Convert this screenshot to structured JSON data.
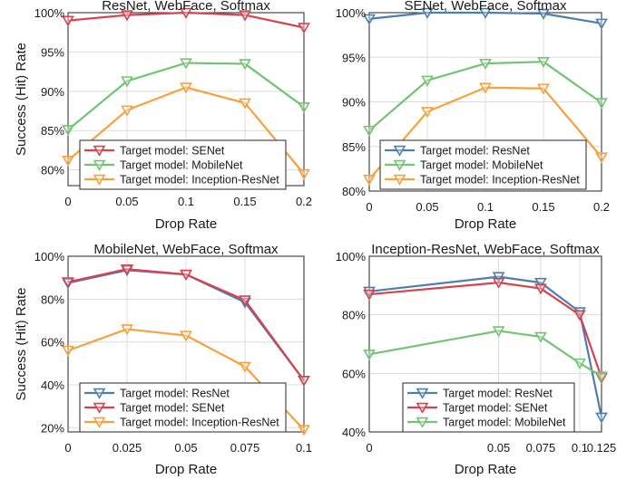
{
  "chart_data": [
    {
      "type": "line",
      "title": "ResNet, WebFace, Softmax",
      "xlabel": "Drop Rate",
      "ylabel": "Success (Hit) Rate",
      "x": [
        0,
        0.05,
        0.1,
        0.15,
        0.2
      ],
      "x_ticks": [
        "0",
        "0.05",
        "0.1",
        "0.15",
        "0.2"
      ],
      "xlim": [
        0,
        0.2
      ],
      "ylim": [
        78,
        100
      ],
      "y_ticks": [
        "80%",
        "85%",
        "90%",
        "95%",
        "100%"
      ],
      "y_tick_values": [
        80,
        85,
        90,
        95,
        100
      ],
      "grid": true,
      "legend_position": "bottom-right",
      "series": [
        {
          "name": "Target model: SENet",
          "color": "#d6434e",
          "values": [
            99.0,
            99.7,
            100.0,
            99.7,
            98.1
          ]
        },
        {
          "name": "Target model: MobileNet",
          "color": "#72c472",
          "values": [
            85.1,
            91.3,
            93.6,
            93.5,
            88.0
          ]
        },
        {
          "name": "Target model: Inception-ResNet",
          "color": "#f6a13b",
          "values": [
            81.2,
            87.6,
            90.5,
            88.5,
            79.5
          ]
        }
      ]
    },
    {
      "type": "line",
      "title": "SENet, WebFace, Softmax",
      "xlabel": "Drop Rate",
      "ylabel": "",
      "x": [
        0,
        0.05,
        0.1,
        0.15,
        0.2
      ],
      "x_ticks": [
        "0",
        "0.05",
        "0.1",
        "0.15",
        "0.2"
      ],
      "xlim": [
        0,
        0.2
      ],
      "ylim": [
        80,
        100
      ],
      "y_ticks": [
        "80%",
        "85%",
        "90%",
        "95%",
        "100%"
      ],
      "y_tick_values": [
        80,
        85,
        90,
        95,
        100
      ],
      "grid": true,
      "legend_position": "bottom-right",
      "series": [
        {
          "name": "Target model: ResNet",
          "color": "#4a7fb0",
          "values": [
            99.3,
            100.0,
            100.0,
            99.9,
            98.8
          ]
        },
        {
          "name": "Target model: MobileNet",
          "color": "#72c472",
          "values": [
            86.8,
            92.4,
            94.3,
            94.5,
            89.9
          ]
        },
        {
          "name": "Target model: Inception-ResNet",
          "color": "#f6a13b",
          "values": [
            81.3,
            88.9,
            91.6,
            91.5,
            83.8
          ]
        }
      ]
    },
    {
      "type": "line",
      "title": "MobileNet, WebFace, Softmax",
      "xlabel": "Drop Rate",
      "ylabel": "Success (Hit) Rate",
      "x": [
        0,
        0.025,
        0.05,
        0.075,
        0.1
      ],
      "x_ticks": [
        "0",
        "0.025",
        "0.05",
        "0.075",
        "0.1"
      ],
      "xlim": [
        0,
        0.1
      ],
      "ylim": [
        18,
        100
      ],
      "y_ticks": [
        "20%",
        "40%",
        "60%",
        "80%",
        "100%"
      ],
      "y_tick_values": [
        20,
        40,
        60,
        80,
        100
      ],
      "grid": true,
      "legend_position": "bottom-left",
      "series": [
        {
          "name": "Target model: ResNet",
          "color": "#4a7fb0",
          "values": [
            87.5,
            93.5,
            91.5,
            78.5,
            42.0
          ]
        },
        {
          "name": "Target model: SENet",
          "color": "#d6434e",
          "values": [
            88.0,
            94.0,
            91.5,
            79.5,
            42.0
          ]
        },
        {
          "name": "Target model: Inception-ResNet",
          "color": "#f6a13b",
          "values": [
            56.0,
            66.0,
            63.0,
            48.5,
            19.0
          ]
        }
      ]
    },
    {
      "type": "line",
      "title": "Inception-ResNet, WebFace, Softmax",
      "xlabel": "Drop Rate",
      "ylabel": "",
      "x": [
        0,
        0.05,
        0.075,
        0.1,
        0.125
      ],
      "x_ticks": [
        "0",
        "0.05",
        "0.075",
        "0.1",
        "0.125"
      ],
      "xlim": [
        0,
        0.125
      ],
      "ylim": [
        40,
        100
      ],
      "y_ticks": [
        "40%",
        "60%",
        "80%",
        "100%"
      ],
      "y_tick_values": [
        40,
        60,
        80,
        100
      ],
      "grid": true,
      "legend_position": "bottom-center",
      "series": [
        {
          "name": "Target model: ResNet",
          "color": "#4a7fb0",
          "values": [
            88.0,
            93.0,
            91.0,
            81.0,
            45.0
          ]
        },
        {
          "name": "Target model: SENet",
          "color": "#d6434e",
          "values": [
            87.0,
            91.0,
            89.0,
            80.0,
            58.5
          ]
        },
        {
          "name": "Target model: MobileNet",
          "color": "#72c472",
          "values": [
            66.5,
            74.5,
            72.5,
            63.5,
            59.0
          ]
        }
      ]
    }
  ]
}
